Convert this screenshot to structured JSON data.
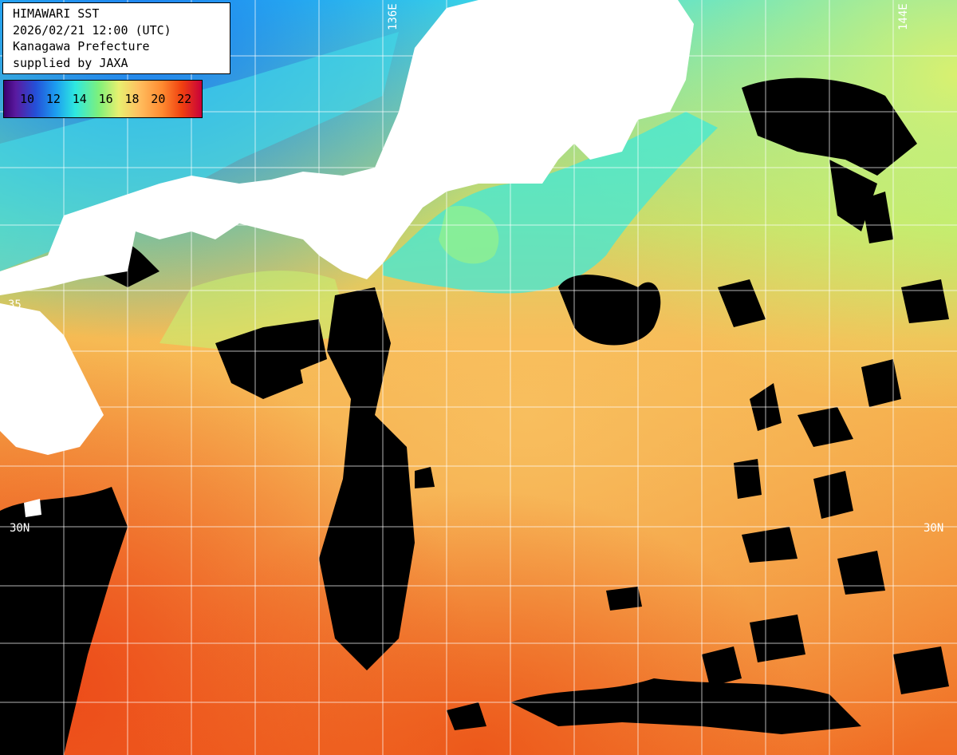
{
  "info": {
    "title": "HIMAWARI SST",
    "datetime": "2026/02/21 12:00 (UTC)",
    "region": "Kanagawa Prefecture",
    "source": "supplied by JAXA"
  },
  "legend": {
    "ticks": [
      "10",
      "12",
      "14",
      "16",
      "18",
      "20",
      "22"
    ]
  },
  "grid_labels": {
    "lon_136": "136E",
    "lon_144": "144E",
    "lat_30_west": "30N",
    "lat_30_east": "30N",
    "lat_35": "35"
  },
  "colors": {
    "land": "#ffffff",
    "cloud": "#000000",
    "cold_water": "#3ad0f0",
    "mid_water": "#90f080",
    "warm_water": "#f4a040",
    "hot_water": "#f06a20"
  }
}
